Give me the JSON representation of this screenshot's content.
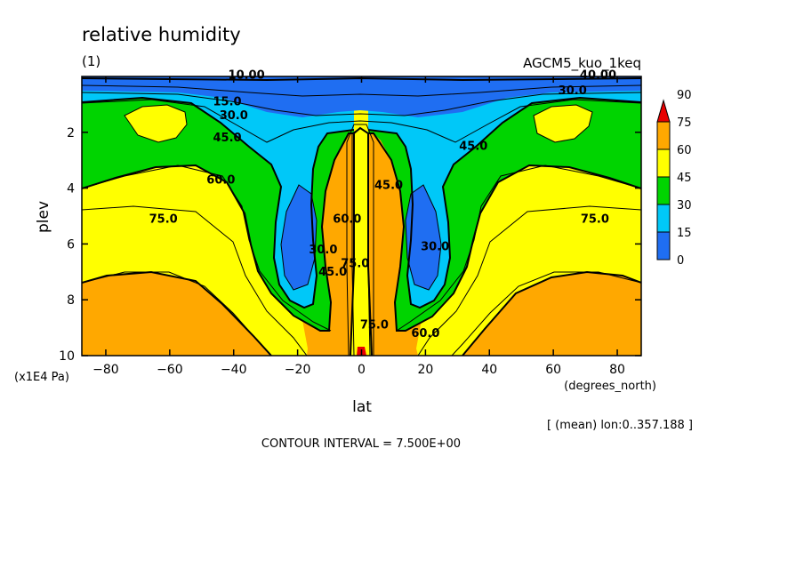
{
  "chart_data": {
    "type": "heatmap",
    "title": "relative humidity",
    "subtitle": "(1)",
    "model_label": "AGCM5_kuo_1keq",
    "xlabel": "lat",
    "xunits": "(degrees_north)",
    "ylabel": "plev",
    "yunits": "(x1E4 Pa)",
    "xlim": [
      -87.5,
      87.5
    ],
    "ylim": [
      10,
      0
    ],
    "x_ticks": [
      -80,
      -60,
      -40,
      -20,
      0,
      20,
      40,
      60,
      80
    ],
    "x_tick_labels": [
      "−80",
      "−60",
      "−40",
      "−20",
      "0",
      "20",
      "40",
      "60",
      "80"
    ],
    "y_ticks": [
      2,
      4,
      6,
      8,
      10
    ],
    "y_tick_labels": [
      "2",
      "4",
      "6",
      "8",
      "10"
    ],
    "contour_interval_text": "CONTOUR INTERVAL = 7.500E+00",
    "mean_note": "[ (mean) lon:0..357.188 ]",
    "colorbar": {
      "levels": [
        0,
        15,
        30,
        45,
        60,
        75,
        90
      ],
      "level_labels": [
        "0",
        "15",
        "30",
        "45",
        "60",
        "75",
        "90"
      ],
      "colors": [
        "#1f6ef2",
        "#00c8f8",
        "#00d400",
        "#ffff00",
        "#ffa800",
        "#e80000"
      ],
      "top_color": "#e80000"
    },
    "contour_labels": [
      {
        "text": "10.00",
        "lat": -36,
        "p": 0.05
      },
      {
        "text": "15.0",
        "lat": -42,
        "p": 1.0
      },
      {
        "text": "30.0",
        "lat": -40,
        "p": 1.5
      },
      {
        "text": "45.0",
        "lat": -42,
        "p": 2.3
      },
      {
        "text": "60.0",
        "lat": -44,
        "p": 3.8
      },
      {
        "text": "75.0",
        "lat": -62,
        "p": 5.2
      },
      {
        "text": "30.0",
        "lat": -12,
        "p": 6.3
      },
      {
        "text": "45.0",
        "lat": -9,
        "p": 7.1
      },
      {
        "text": "60.0",
        "lat": -4.5,
        "p": 5.2
      },
      {
        "text": "75.0",
        "lat": -2,
        "p": 6.8
      },
      {
        "text": "45.0",
        "lat": 8.5,
        "p": 4.0
      },
      {
        "text": "30.0",
        "lat": 23,
        "p": 6.2
      },
      {
        "text": "60.0",
        "lat": 20,
        "p": 9.3
      },
      {
        "text": "75.0",
        "lat": 4,
        "p": 9.0
      },
      {
        "text": "45.0",
        "lat": 35,
        "p": 2.6
      },
      {
        "text": "75.0",
        "lat": 73,
        "p": 5.2
      },
      {
        "text": "30.0",
        "lat": 66,
        "p": 0.6
      },
      {
        "text": "40.00",
        "lat": 74,
        "p": 0.05
      }
    ]
  }
}
